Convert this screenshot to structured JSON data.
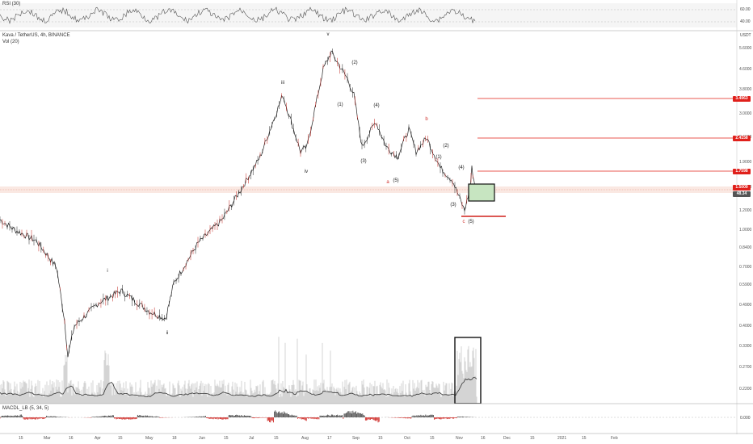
{
  "rsi_pane": {
    "label": "RSI (30)",
    "levels": [
      60.0,
      40.0
    ],
    "level_labels": [
      "60.00",
      "40.00"
    ]
  },
  "main_pane": {
    "symbol_line": "Kava / TetherUS, 4h, BINANCE",
    "vol_label": "Vol (20)",
    "currency": "USDT"
  },
  "macd_pane": {
    "label": "MACDL_LB (5, 34, 5)",
    "zero_label": "0.000"
  },
  "price_badges": [
    {
      "value": "3.4963",
      "color": "#e0201b",
      "row": "hl1"
    },
    {
      "value": "2.4158",
      "color": "#e0201b",
      "row": "hl2"
    },
    {
      "value": "1.7598",
      "color": "#e0201b",
      "row": "hl3"
    },
    {
      "value": "1.5009",
      "color": "#e0201b",
      "row": "cur"
    },
    {
      "value": "48.34",
      "color": "#555555",
      "row": "cur2"
    }
  ],
  "wave_labels": [
    {
      "text": "i",
      "color": "dark"
    },
    {
      "text": "ii",
      "color": "dark"
    },
    {
      "text": "iii",
      "color": "dark"
    },
    {
      "text": "iv",
      "color": "dark"
    },
    {
      "text": "v",
      "color": "dark"
    },
    {
      "text": "(1)",
      "color": "dark"
    },
    {
      "text": "(2)",
      "color": "dark"
    },
    {
      "text": "(3)",
      "color": "dark"
    },
    {
      "text": "(4)",
      "color": "dark"
    },
    {
      "text": "(5)",
      "color": "dark"
    },
    {
      "text": "a",
      "color": "red"
    },
    {
      "text": "b",
      "color": "red"
    },
    {
      "text": "(1)",
      "color": "dark"
    },
    {
      "text": "(2)",
      "color": "dark"
    },
    {
      "text": "(3)",
      "color": "dark"
    },
    {
      "text": "(4)",
      "color": "dark"
    },
    {
      "text": "c",
      "color": "red"
    },
    {
      "text": "(5)",
      "color": "dark"
    }
  ],
  "chart_data": {
    "type": "line",
    "title": "Kava / TetherUS, 4h, BINANCE",
    "yscale": "log",
    "ylim": [
      0.2,
      6.0
    ],
    "y_ticks": [
      "5.6000",
      "4.6000",
      "3.8000",
      "3.0000",
      "2.4000",
      "1.9000",
      "1.5000",
      "1.2000",
      "1.0000",
      "0.8400",
      "0.7000",
      "0.5900",
      "0.4900",
      "0.4000",
      "0.3300",
      "0.2700",
      "0.2200"
    ],
    "x_ticks": [
      "15",
      "Mar",
      "16",
      "Apr",
      "15",
      "May",
      "18",
      "Jun",
      "15",
      "Jul",
      "15",
      "Aug",
      "17",
      "Sep",
      "15",
      "Oct",
      "15",
      "Nov",
      "16",
      "Dec",
      "15",
      "2021",
      "15",
      "Feb"
    ],
    "series": [
      {
        "name": "KAVA/USDT",
        "x": [
          "Feb 1",
          "Feb 15",
          "Mar 1",
          "Mar 9",
          "Mar 12",
          "Mar 13",
          "Mar 20",
          "Apr 1",
          "Apr 15",
          "May 1",
          "May 10",
          "May 15",
          "Jun 1",
          "Jun 15",
          "Jul 1",
          "Jul 10",
          "Jul 20",
          "Jul 25",
          "Aug 1",
          "Aug 10",
          "Aug 15",
          "Aug 22",
          "Aug 28",
          "Sep 1",
          "Sep 8",
          "Sep 15",
          "Sep 22",
          "Oct 1",
          "Oct 8",
          "Oct 15",
          "Oct 22",
          "Oct 28",
          "Nov 2",
          "Nov 6",
          "Nov 9",
          "Nov 12"
        ],
        "values": [
          1.1,
          1.0,
          0.9,
          0.7,
          0.42,
          0.3,
          0.4,
          0.5,
          0.56,
          0.46,
          0.43,
          0.6,
          0.88,
          1.1,
          1.5,
          2.0,
          3.6,
          2.1,
          2.2,
          4.6,
          5.4,
          4.2,
          3.6,
          2.2,
          2.8,
          2.2,
          2.0,
          2.6,
          2.1,
          2.4,
          1.8,
          1.6,
          1.2,
          1.5,
          1.8,
          1.5
        ]
      }
    ],
    "horizontal_levels": [
      3.4963,
      2.4158,
      1.7598,
      1.2
    ]
  }
}
